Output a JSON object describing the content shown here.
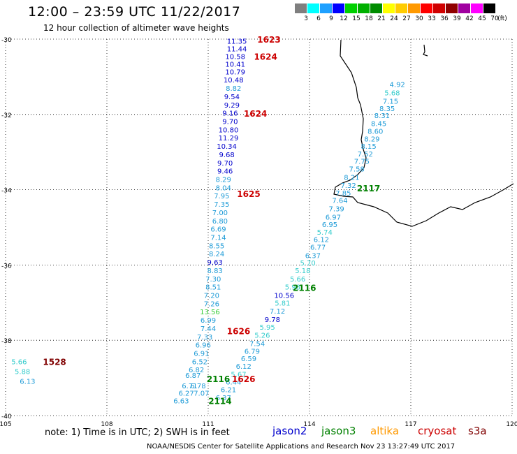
{
  "header": {
    "title": "12:00 – 23:59 UTC 11/22/2017",
    "subtitle": "12 hour collection of altimeter wave heights"
  },
  "color_scale": {
    "unit": "(ft)",
    "items": [
      {
        "label": "3",
        "color": "#7f7f7f"
      },
      {
        "label": "6",
        "color": "#00ffff"
      },
      {
        "label": "9",
        "color": "#1ea0ff"
      },
      {
        "label": "12",
        "color": "#0000ff"
      },
      {
        "label": "15",
        "color": "#00d000"
      },
      {
        "label": "18",
        "color": "#00b000"
      },
      {
        "label": "21",
        "color": "#008c00"
      },
      {
        "label": "24",
        "color": "#ffff00"
      },
      {
        "label": "27",
        "color": "#ffcc00"
      },
      {
        "label": "30",
        "color": "#ff9900"
      },
      {
        "label": "33",
        "color": "#ff0000"
      },
      {
        "label": "36",
        "color": "#d00000"
      },
      {
        "label": "39",
        "color": "#900000"
      },
      {
        "label": "42",
        "color": "#a000a0"
      },
      {
        "label": "45",
        "color": "#ff00ff"
      },
      {
        "label": "70",
        "color": "#000000"
      }
    ]
  },
  "axes": {
    "lat_labels": [
      "-30",
      "-32",
      "-34",
      "-36",
      "-38",
      "-40"
    ],
    "lon_labels": [
      "105",
      "108",
      "111",
      "114",
      "117",
      "120"
    ]
  },
  "wave_labels": [
    {
      "text": "11.35",
      "lon": 111.85,
      "lat": -30.05,
      "color": "#0000cc"
    },
    {
      "text": "11.44",
      "lon": 111.85,
      "lat": -30.25,
      "color": "#0000cc"
    },
    {
      "text": "10.58",
      "lon": 111.8,
      "lat": -30.45,
      "color": "#0000cc"
    },
    {
      "text": "10.41",
      "lon": 111.8,
      "lat": -30.66,
      "color": "#0000cc"
    },
    {
      "text": "10.79",
      "lon": 111.8,
      "lat": -30.86,
      "color": "#0000cc"
    },
    {
      "text": "10.48",
      "lon": 111.75,
      "lat": -31.08,
      "color": "#0000cc"
    },
    {
      "text": "8.82",
      "lon": 111.75,
      "lat": -31.3,
      "color": "#1e9bd7"
    },
    {
      "text": "9.54",
      "lon": 111.7,
      "lat": -31.52,
      "color": "#0000cc"
    },
    {
      "text": "9.29",
      "lon": 111.7,
      "lat": -31.74,
      "color": "#0000cc"
    },
    {
      "text": "9.16",
      "lon": 111.65,
      "lat": -31.96,
      "color": "#0000cc"
    },
    {
      "text": "9.70",
      "lon": 111.65,
      "lat": -32.18,
      "color": "#0000cc"
    },
    {
      "text": "10.80",
      "lon": 111.6,
      "lat": -32.4,
      "color": "#0000cc"
    },
    {
      "text": "11.29",
      "lon": 111.6,
      "lat": -32.62,
      "color": "#0000cc"
    },
    {
      "text": "10.34",
      "lon": 111.55,
      "lat": -32.84,
      "color": "#0000cc"
    },
    {
      "text": "9.68",
      "lon": 111.55,
      "lat": -33.06,
      "color": "#0000cc"
    },
    {
      "text": "9.70",
      "lon": 111.5,
      "lat": -33.28,
      "color": "#0000cc"
    },
    {
      "text": "9.46",
      "lon": 111.5,
      "lat": -33.5,
      "color": "#0000cc"
    },
    {
      "text": "8.29",
      "lon": 111.45,
      "lat": -33.72,
      "color": "#1e9bd7"
    },
    {
      "text": "8.04",
      "lon": 111.45,
      "lat": -33.94,
      "color": "#1e9bd7"
    },
    {
      "text": "7.95",
      "lon": 111.4,
      "lat": -34.16,
      "color": "#1e9bd7"
    },
    {
      "text": "7.35",
      "lon": 111.4,
      "lat": -34.38,
      "color": "#1e9bd7"
    },
    {
      "text": "7.00",
      "lon": 111.35,
      "lat": -34.6,
      "color": "#1e9bd7"
    },
    {
      "text": "6.80",
      "lon": 111.35,
      "lat": -34.82,
      "color": "#1e9bd7"
    },
    {
      "text": "6.69",
      "lon": 111.3,
      "lat": -35.04,
      "color": "#1e9bd7"
    },
    {
      "text": "7.14",
      "lon": 111.3,
      "lat": -35.26,
      "color": "#1e9bd7"
    },
    {
      "text": "8.55",
      "lon": 111.25,
      "lat": -35.48,
      "color": "#1e9bd7"
    },
    {
      "text": "8.24",
      "lon": 111.25,
      "lat": -35.7,
      "color": "#1e9bd7"
    },
    {
      "text": "9.63",
      "lon": 111.2,
      "lat": -35.92,
      "color": "#0000cc"
    },
    {
      "text": "8.83",
      "lon": 111.2,
      "lat": -36.14,
      "color": "#1e9bd7"
    },
    {
      "text": "7.30",
      "lon": 111.15,
      "lat": -36.36,
      "color": "#1e9bd7"
    },
    {
      "text": "8.51",
      "lon": 111.15,
      "lat": -36.58,
      "color": "#1e9bd7"
    },
    {
      "text": "7.20",
      "lon": 111.1,
      "lat": -36.8,
      "color": "#1e9bd7"
    },
    {
      "text": "7.26",
      "lon": 111.1,
      "lat": -37.02,
      "color": "#1e9bd7"
    },
    {
      "text": "13.56",
      "lon": 111.05,
      "lat": -37.24,
      "color": "#33cc33"
    },
    {
      "text": "6.99",
      "lon": 111.0,
      "lat": -37.46,
      "color": "#1e9bd7"
    },
    {
      "text": "7.44",
      "lon": 111.0,
      "lat": -37.68,
      "color": "#1e9bd7"
    },
    {
      "text": "7.33",
      "lon": 110.9,
      "lat": -37.9,
      "color": "#1e9bd7"
    },
    {
      "text": "6.96",
      "lon": 110.85,
      "lat": -38.12,
      "color": "#1e9bd7"
    },
    {
      "text": "6.91",
      "lon": 110.8,
      "lat": -38.34,
      "color": "#1e9bd7"
    },
    {
      "text": "6.52",
      "lon": 110.75,
      "lat": -38.56,
      "color": "#1e9bd7"
    },
    {
      "text": "6.82",
      "lon": 110.65,
      "lat": -38.78,
      "color": "#1e9bd7"
    },
    {
      "text": "6.87",
      "lon": 110.55,
      "lat": -38.92,
      "color": "#1e9bd7"
    },
    {
      "text": "6.71",
      "lon": 110.45,
      "lat": -39.2,
      "color": "#1e9bd7"
    },
    {
      "text": "6.27",
      "lon": 110.35,
      "lat": -39.4,
      "color": "#1e9bd7"
    },
    {
      "text": "6.63",
      "lon": 110.2,
      "lat": -39.6,
      "color": "#1e9bd7"
    },
    {
      "text": "6.78",
      "lon": 110.7,
      "lat": -39.2,
      "color": "#1e9bd7"
    },
    {
      "text": "7.07",
      "lon": 110.8,
      "lat": -39.4,
      "color": "#1e9bd7"
    },
    {
      "text": "4.92",
      "lon": 116.6,
      "lat": -31.2,
      "color": "#1e9bd7"
    },
    {
      "text": "5.68",
      "lon": 116.45,
      "lat": -31.42,
      "color": "#33cccc"
    },
    {
      "text": "7.15",
      "lon": 116.4,
      "lat": -31.64,
      "color": "#1e9bd7"
    },
    {
      "text": "8.35",
      "lon": 116.3,
      "lat": -31.84,
      "color": "#1e9bd7"
    },
    {
      "text": "8.31",
      "lon": 116.15,
      "lat": -32.02,
      "color": "#1e9bd7"
    },
    {
      "text": "8.45",
      "lon": 116.05,
      "lat": -32.24,
      "color": "#1e9bd7"
    },
    {
      "text": "8.60",
      "lon": 115.95,
      "lat": -32.44,
      "color": "#1e9bd7"
    },
    {
      "text": "8.29",
      "lon": 115.85,
      "lat": -32.64,
      "color": "#1e9bd7"
    },
    {
      "text": "8.15",
      "lon": 115.75,
      "lat": -32.84,
      "color": "#1e9bd7"
    },
    {
      "text": "7.52",
      "lon": 115.65,
      "lat": -33.04,
      "color": "#1e9bd7"
    },
    {
      "text": "7.75",
      "lon": 115.55,
      "lat": -33.24,
      "color": "#1e9bd7"
    },
    {
      "text": "7.58",
      "lon": 115.4,
      "lat": -33.44,
      "color": "#1e9bd7"
    },
    {
      "text": "8.21",
      "lon": 115.25,
      "lat": -33.66,
      "color": "#1e9bd7"
    },
    {
      "text": "7.32",
      "lon": 115.15,
      "lat": -33.88,
      "color": "#1e9bd7"
    },
    {
      "text": "7.85",
      "lon": 115.0,
      "lat": -34.08,
      "color": "#1e9bd7"
    },
    {
      "text": "7.64",
      "lon": 114.9,
      "lat": -34.28,
      "color": "#1e9bd7"
    },
    {
      "text": "7.39",
      "lon": 114.8,
      "lat": -34.5,
      "color": "#1e9bd7"
    },
    {
      "text": "6.97",
      "lon": 114.7,
      "lat": -34.72,
      "color": "#1e9bd7"
    },
    {
      "text": "6.95",
      "lon": 114.6,
      "lat": -34.92,
      "color": "#1e9bd7"
    },
    {
      "text": "5.74",
      "lon": 114.45,
      "lat": -35.12,
      "color": "#33cccc"
    },
    {
      "text": "6.12",
      "lon": 114.35,
      "lat": -35.32,
      "color": "#1e9bd7"
    },
    {
      "text": "6.77",
      "lon": 114.25,
      "lat": -35.52,
      "color": "#1e9bd7"
    },
    {
      "text": "6.37",
      "lon": 114.1,
      "lat": -35.74,
      "color": "#1e9bd7"
    },
    {
      "text": "5.70",
      "lon": 113.95,
      "lat": -35.94,
      "color": "#33cccc"
    },
    {
      "text": "5.18",
      "lon": 113.8,
      "lat": -36.14,
      "color": "#33cccc"
    },
    {
      "text": "5.66",
      "lon": 113.65,
      "lat": -36.36,
      "color": "#33cccc"
    },
    {
      "text": "5.98",
      "lon": 113.5,
      "lat": -36.58,
      "color": "#33cccc"
    },
    {
      "text": "10.56",
      "lon": 113.25,
      "lat": -36.8,
      "color": "#0000cc"
    },
    {
      "text": "5.81",
      "lon": 113.2,
      "lat": -37.0,
      "color": "#33cccc"
    },
    {
      "text": "7.12",
      "lon": 113.05,
      "lat": -37.22,
      "color": "#1e9bd7"
    },
    {
      "text": "9.78",
      "lon": 112.9,
      "lat": -37.44,
      "color": "#0000cc"
    },
    {
      "text": "5.95",
      "lon": 112.75,
      "lat": -37.64,
      "color": "#33cccc"
    },
    {
      "text": "5.26",
      "lon": 112.6,
      "lat": -37.86,
      "color": "#33cccc"
    },
    {
      "text": "7.54",
      "lon": 112.45,
      "lat": -38.08,
      "color": "#1e9bd7"
    },
    {
      "text": "6.79",
      "lon": 112.3,
      "lat": -38.28,
      "color": "#1e9bd7"
    },
    {
      "text": "6.59",
      "lon": 112.2,
      "lat": -38.48,
      "color": "#1e9bd7"
    },
    {
      "text": "6.12",
      "lon": 112.05,
      "lat": -38.68,
      "color": "#1e9bd7"
    },
    {
      "text": "5.67",
      "lon": 111.9,
      "lat": -38.9,
      "color": "#33cccc"
    },
    {
      "text": "6.44",
      "lon": 111.75,
      "lat": -39.1,
      "color": "#1e9bd7"
    },
    {
      "text": "6.21",
      "lon": 111.6,
      "lat": -39.3,
      "color": "#1e9bd7"
    },
    {
      "text": "6.37",
      "lon": 111.45,
      "lat": -39.52,
      "color": "#1e9bd7"
    },
    {
      "text": "5.66",
      "lon": 105.4,
      "lat": -38.56,
      "color": "#33cccc"
    },
    {
      "text": "5.88",
      "lon": 105.5,
      "lat": -38.82,
      "color": "#33cccc"
    },
    {
      "text": "6.13",
      "lon": 105.65,
      "lat": -39.08,
      "color": "#1e9bd7"
    }
  ],
  "time_labels": [
    {
      "text": "1623",
      "lon": 112.8,
      "lat": -30.0,
      "color": "#cc0000"
    },
    {
      "text": "1624",
      "lon": 112.7,
      "lat": -30.45,
      "color": "#cc0000"
    },
    {
      "text": "1624",
      "lon": 112.4,
      "lat": -31.97,
      "color": "#cc0000"
    },
    {
      "text": "1625",
      "lon": 112.2,
      "lat": -34.1,
      "color": "#cc0000"
    },
    {
      "text": "1626",
      "lon": 111.9,
      "lat": -37.75,
      "color": "#cc0000"
    },
    {
      "text": "1626",
      "lon": 112.05,
      "lat": -39.02,
      "color": "#cc0000"
    },
    {
      "text": "1528",
      "lon": 106.45,
      "lat": -38.56,
      "color": "#800000"
    },
    {
      "text": "2117",
      "lon": 115.75,
      "lat": -33.95,
      "color": "#008000"
    },
    {
      "text": "2116",
      "lon": 113.85,
      "lat": -36.6,
      "color": "#008000"
    },
    {
      "text": "2116",
      "lon": 111.3,
      "lat": -39.02,
      "color": "#008000"
    },
    {
      "text": "2114",
      "lon": 111.35,
      "lat": -39.6,
      "color": "#008000"
    }
  ],
  "footer": {
    "note": "note:  1) Time is in UTC;  2) SWH is in feet",
    "legend": [
      {
        "label": "jason2",
        "color": "#0000cc"
      },
      {
        "label": "jason3",
        "color": "#008000"
      },
      {
        "label": "altika",
        "color": "#ff9900"
      },
      {
        "label": "cryosat",
        "color": "#cc0000"
      },
      {
        "label": "s3a",
        "color": "#800000"
      }
    ],
    "credit": "NOAA/NESDIS Center for Satellite Applications and Research      Nov 23 13:27:49 UTC 2017"
  }
}
